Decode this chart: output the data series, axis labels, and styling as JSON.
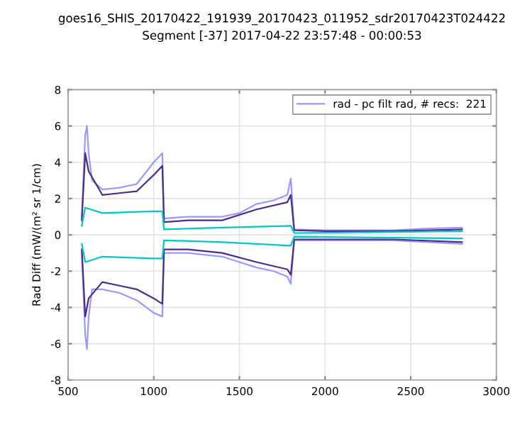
{
  "chart_data": {
    "type": "line",
    "title": "goes16_SHIS_20170422_191939_20170423_011952_sdr20170423T024422",
    "subtitle": "Segment [-37] 2017-04-22 23:57:48 - 00:00:53",
    "ylabel": "Rad Diff (mW/(m² sr 1/cm)",
    "series": [
      {
        "name": "rad - pc filt rad, # recs:  221",
        "color": "#9999ff",
        "x": [
          580,
          600,
          610,
          620,
          640,
          700,
          800,
          900,
          1000,
          1050,
          1060,
          1200,
          1400,
          1500,
          1600,
          1700,
          1780,
          1800,
          1820,
          2000,
          2400,
          2600,
          2800
        ],
        "values": [
          1,
          5.5,
          6,
          4.5,
          3,
          2.5,
          2.6,
          2.8,
          4,
          4.5,
          0.9,
          1,
          1,
          1.2,
          1.7,
          1.9,
          2.2,
          3.1,
          0.3,
          0.25,
          0.25,
          0.35,
          0.4
        ]
      },
      {
        "color": "#9999ff",
        "x": [
          580,
          600,
          610,
          620,
          640,
          700,
          800,
          900,
          1000,
          1050,
          1060,
          1200,
          1400,
          1500,
          1600,
          1700,
          1780,
          1800,
          1820,
          2000,
          2400,
          2600,
          2800
        ],
        "values": [
          -1,
          -5.5,
          -6.3,
          -4.5,
          -3,
          -3,
          -3.2,
          -3.6,
          -4.3,
          -4.5,
          -1,
          -1,
          -1.2,
          -1.5,
          -1.8,
          -2,
          -2.3,
          -2.7,
          -0.3,
          -0.3,
          -0.3,
          -0.4,
          -0.5
        ]
      },
      {
        "color": "#4b2d8a",
        "x": [
          580,
          600,
          620,
          700,
          800,
          900,
          1000,
          1050,
          1060,
          1200,
          1400,
          1600,
          1780,
          1800,
          1820,
          2000,
          2400,
          2800
        ],
        "values": [
          0.8,
          4.5,
          3.5,
          2.2,
          2.3,
          2.4,
          3.3,
          3.8,
          0.7,
          0.8,
          0.8,
          1.4,
          1.8,
          2.2,
          0.25,
          0.2,
          0.2,
          0.3
        ]
      },
      {
        "color": "#4b2d8a",
        "x": [
          580,
          600,
          620,
          700,
          800,
          900,
          1000,
          1050,
          1060,
          1200,
          1400,
          1600,
          1780,
          1800,
          1820,
          2000,
          2400,
          2800
        ],
        "values": [
          -0.8,
          -4.5,
          -3.5,
          -2.6,
          -2.8,
          -3,
          -3.5,
          -3.8,
          -0.8,
          -0.8,
          -1,
          -1.5,
          -1.9,
          -2.2,
          -0.25,
          -0.25,
          -0.25,
          -0.4
        ]
      },
      {
        "color": "#00c8c8",
        "x": [
          580,
          600,
          700,
          1000,
          1050,
          1060,
          1400,
          1800,
          1820,
          2800
        ],
        "values": [
          0.5,
          1.5,
          1.2,
          1.3,
          1.3,
          0.3,
          0.4,
          0.5,
          0.1,
          0.2
        ]
      },
      {
        "color": "#00c8c8",
        "x": [
          580,
          600,
          700,
          1000,
          1050,
          1060,
          1400,
          1800,
          1820,
          2800
        ],
        "values": [
          -0.5,
          -1.5,
          -1.2,
          -1.3,
          -1.3,
          -0.3,
          -0.4,
          -0.6,
          -0.1,
          -0.2
        ]
      }
    ],
    "xlim": [
      500,
      3000
    ],
    "xticks": [
      500,
      1000,
      1500,
      2000,
      2500,
      3000
    ],
    "ylim": [
      -8,
      8
    ],
    "yticks": [
      -8,
      -6,
      -4,
      -2,
      0,
      2,
      4,
      6,
      8
    ],
    "grid": true,
    "legend": "top right",
    "line_style": "solid",
    "marker": "none"
  }
}
